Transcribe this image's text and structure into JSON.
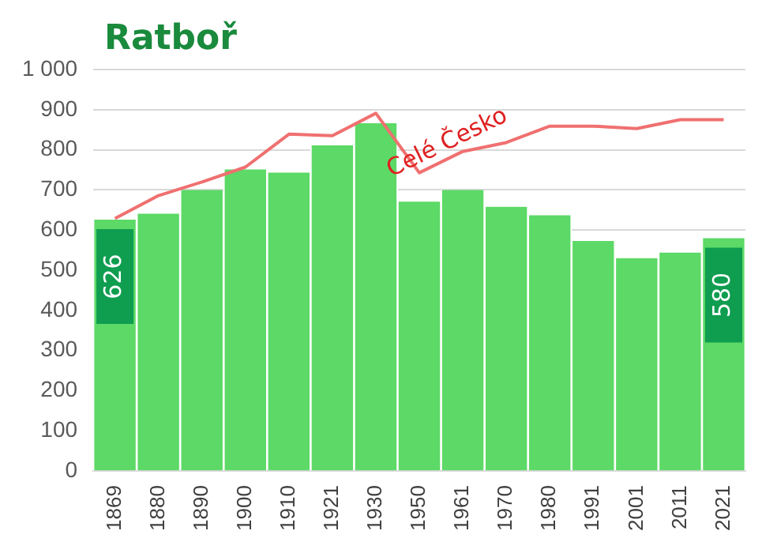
{
  "chart_data": {
    "type": "bar",
    "title": "Ratboř",
    "categories": [
      "1869",
      "1880",
      "1890",
      "1900",
      "1910",
      "1921",
      "1930",
      "1950",
      "1961",
      "1970",
      "1980",
      "1991",
      "2001",
      "2011",
      "2021"
    ],
    "series": [
      {
        "color": "#5cd966",
        "values": [
          626,
          641,
          700,
          751,
          743,
          811,
          866,
          671,
          700,
          658,
          637,
          573,
          530,
          544,
          580
        ],
        "value_labels": [
          "626",
          null,
          null,
          null,
          null,
          null,
          null,
          null,
          null,
          null,
          null,
          null,
          null,
          null,
          "580"
        ]
      },
      {
        "type": "line",
        "name": "Celé Česko",
        "color": "#f07070",
        "values": [
          629,
          686,
          720,
          757,
          839,
          835,
          891,
          743,
          796,
          818,
          859,
          859,
          853,
          875,
          875
        ]
      }
    ],
    "ylim": [
      0,
      1000
    ],
    "yticks": [
      0,
      100,
      200,
      300,
      400,
      500,
      600,
      700,
      800,
      900,
      {
        "value": 1000,
        "label": "1 000"
      }
    ],
    "grid": "y",
    "legend": false,
    "marker": "none"
  }
}
